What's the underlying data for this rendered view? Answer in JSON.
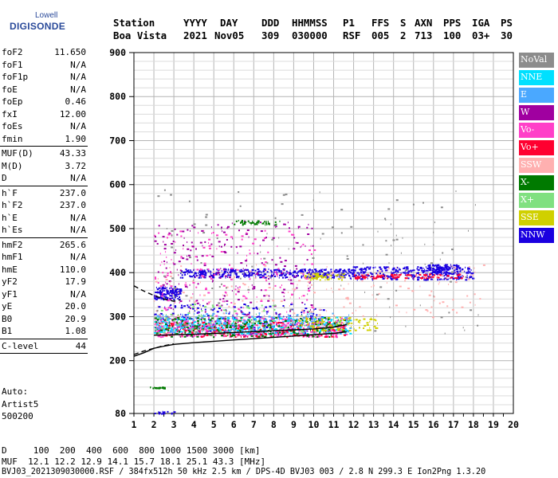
{
  "logo": {
    "line1": "Lowell",
    "line2": "DIGISONDE"
  },
  "header": {
    "labels": [
      "Station",
      "YYYY",
      "DAY",
      "DDD",
      "HHMMSS",
      "P1",
      "FFS",
      "S",
      "AXN",
      "PPS",
      "IGA",
      "PS"
    ],
    "values": [
      "Boa Vista",
      "2021",
      "Nov05",
      "309",
      "030000",
      "RSF",
      "005",
      "2",
      "713",
      "100",
      "03+",
      "30"
    ]
  },
  "params": {
    "group1": [
      {
        "name": "foF2",
        "value": "11.650"
      },
      {
        "name": "foF1",
        "value": "N/A"
      },
      {
        "name": "foF1p",
        "value": "N/A"
      },
      {
        "name": "foE",
        "value": "N/A"
      },
      {
        "name": "foEp",
        "value": "0.46"
      },
      {
        "name": "fxI",
        "value": "12.00"
      },
      {
        "name": "foEs",
        "value": "N/A"
      },
      {
        "name": "fmin",
        "value": "1.90"
      }
    ],
    "group2": [
      {
        "name": "MUF(D)",
        "value": "43.33"
      },
      {
        "name": "M(D)",
        "value": "3.72"
      },
      {
        "name": "D",
        "value": "N/A"
      }
    ],
    "group3": [
      {
        "name": "h`F",
        "value": "237.0"
      },
      {
        "name": "h`F2",
        "value": "237.0"
      },
      {
        "name": "h`E",
        "value": "N/A"
      },
      {
        "name": "h`Es",
        "value": "N/A"
      }
    ],
    "group4": [
      {
        "name": "hmF2",
        "value": "265.6"
      },
      {
        "name": "hmF1",
        "value": "N/A"
      },
      {
        "name": "hmE",
        "value": "110.0"
      },
      {
        "name": "yF2",
        "value": "17.9"
      },
      {
        "name": "yF1",
        "value": "N/A"
      },
      {
        "name": "yE",
        "value": "20.0"
      },
      {
        "name": "B0",
        "value": "20.9"
      },
      {
        "name": "B1",
        "value": "1.08"
      }
    ],
    "group5": [
      {
        "name": "C-level",
        "value": "44"
      }
    ],
    "auto": [
      "Auto:",
      "Artist5",
      "500200"
    ]
  },
  "legend": [
    {
      "label": "NoVal",
      "color": "#8c8c8c"
    },
    {
      "label": "NNE",
      "color": "#00e0ff"
    },
    {
      "label": "E",
      "color": "#4aa8ff"
    },
    {
      "label": "W",
      "color": "#a000a0"
    },
    {
      "label": "Vo-",
      "color": "#ff3fc8"
    },
    {
      "label": "Vo+",
      "color": "#ff0030"
    },
    {
      "label": "SSW",
      "color": "#ffb0b0"
    },
    {
      "label": "X-",
      "color": "#007a00"
    },
    {
      "label": "X+",
      "color": "#80e080"
    },
    {
      "label": "SSE",
      "color": "#d0d000"
    },
    {
      "label": "NNW",
      "color": "#1a00e0"
    }
  ],
  "footer": {
    "line1": "D     100  200  400  600  800 1000 1500 3000 [km]",
    "line2": "MUF  12.1 12.2 12.9 14.1 15.7 18.1 25.1 43.3 [MHz]",
    "line3": "BVJ03_2021309030000.RSF / 384fx512h 50 kHz 2.5 km / DPS-4D BVJ03 003 / 2.8 N 299.3 E Ion2Png 1.3.20"
  },
  "chart_data": {
    "type": "scatter",
    "xlim": [
      1,
      20
    ],
    "ylim": [
      80,
      900
    ],
    "xticks": [
      1,
      2,
      3,
      4,
      5,
      6,
      7,
      8,
      9,
      10,
      11,
      12,
      13,
      14,
      15,
      16,
      17,
      18,
      19,
      20
    ],
    "yticks": [
      80,
      200,
      300,
      400,
      500,
      600,
      700,
      800,
      900
    ],
    "grid": true,
    "legend_position": "right",
    "curves": [
      {
        "name": "profile",
        "style": "solid",
        "color": "#000000",
        "x": [
          1.0,
          1.5,
          2.0,
          2.5,
          3.0,
          4.0,
          5.0,
          6.0,
          7.0,
          8.0,
          9.0,
          10.0,
          11.0,
          11.65
        ],
        "y": [
          210,
          218,
          228,
          233,
          237,
          241,
          244,
          247,
          250,
          253,
          256,
          259,
          262,
          265.6
        ]
      },
      {
        "name": "F-trace",
        "style": "solid",
        "color": "#000000",
        "x": [
          2.0,
          2.5,
          3.0,
          4.0,
          5.0,
          6.0,
          7.0,
          8.0,
          9.0,
          10.0,
          11.0,
          11.65
        ],
        "y": [
          258,
          258,
          259,
          260,
          262,
          264,
          266,
          268,
          270,
          272,
          276,
          282
        ]
      },
      {
        "name": "upper-bound",
        "style": "dashed",
        "color": "#000000",
        "x": [
          1.0,
          1.5,
          2.0,
          2.5,
          3.0,
          3.3
        ],
        "y": [
          370,
          358,
          348,
          340,
          335,
          338
        ]
      },
      {
        "name": "lower-bound",
        "style": "dashed",
        "color": "#000000",
        "x": [
          1.0,
          1.5,
          2.0,
          2.5,
          3.0
        ],
        "y": [
          214,
          222,
          228,
          234,
          238
        ]
      }
    ],
    "clusters": [
      {
        "color": "#1a00e0",
        "x": [
          2.0,
          3.3
        ],
        "y": [
          340,
          370
        ],
        "n": 140
      },
      {
        "color": "#1a00e0",
        "x": [
          3.3,
          12.0
        ],
        "y": [
          390,
          410
        ],
        "n": 420
      },
      {
        "color": "#1a00e0",
        "x": [
          11.8,
          18.0
        ],
        "y": [
          385,
          415
        ],
        "n": 320
      },
      {
        "color": "#1a00e0",
        "x": [
          15.5,
          17.2
        ],
        "y": [
          400,
          420
        ],
        "n": 90
      },
      {
        "color": "#1a00e0",
        "x": [
          2.0,
          10.5
        ],
        "y": [
          260,
          330
        ],
        "n": 240
      },
      {
        "color": "#1a00e0",
        "x": [
          2.0,
          3.0
        ],
        "y": [
          80,
          86
        ],
        "n": 14
      },
      {
        "color": "#ff3fc8",
        "x": [
          2.0,
          11.6
        ],
        "y": [
          255,
          300
        ],
        "n": 520
      },
      {
        "color": "#ff3fc8",
        "x": [
          2.0,
          10.0
        ],
        "y": [
          300,
          500
        ],
        "n": 180
      },
      {
        "color": "#ff0030",
        "x": [
          2.0,
          11.6
        ],
        "y": [
          255,
          290
        ],
        "n": 260
      },
      {
        "color": "#ff0030",
        "x": [
          12.0,
          17.5
        ],
        "y": [
          388,
          398
        ],
        "n": 120
      },
      {
        "color": "#a000a0",
        "x": [
          2.0,
          10.0
        ],
        "y": [
          255,
          520
        ],
        "n": 260
      },
      {
        "color": "#00e0ff",
        "x": [
          2.0,
          11.8
        ],
        "y": [
          262,
          300
        ],
        "n": 300
      },
      {
        "color": "#4aa8ff",
        "x": [
          2.0,
          11.8
        ],
        "y": [
          262,
          310
        ],
        "n": 220
      },
      {
        "color": "#007a00",
        "x": [
          2.0,
          11.5
        ],
        "y": [
          255,
          300
        ],
        "n": 220
      },
      {
        "color": "#007a00",
        "x": [
          6.0,
          8.3
        ],
        "y": [
          510,
          520
        ],
        "n": 40
      },
      {
        "color": "#007a00",
        "x": [
          1.8,
          2.6
        ],
        "y": [
          138,
          142
        ],
        "n": 18
      },
      {
        "color": "#80e080",
        "x": [
          2.0,
          10.0
        ],
        "y": [
          260,
          330
        ],
        "n": 80
      },
      {
        "color": "#d0d000",
        "x": [
          9.2,
          13.2
        ],
        "y": [
          270,
          300
        ],
        "n": 90
      },
      {
        "color": "#d0d000",
        "x": [
          9.5,
          11.5
        ],
        "y": [
          385,
          400
        ],
        "n": 60
      },
      {
        "color": "#ffb0b0",
        "x": [
          2.0,
          18.5
        ],
        "y": [
          300,
          420
        ],
        "n": 180
      },
      {
        "color": "#8c8c8c",
        "x": [
          2.0,
          18.5
        ],
        "y": [
          260,
          600
        ],
        "n": 140
      }
    ]
  }
}
